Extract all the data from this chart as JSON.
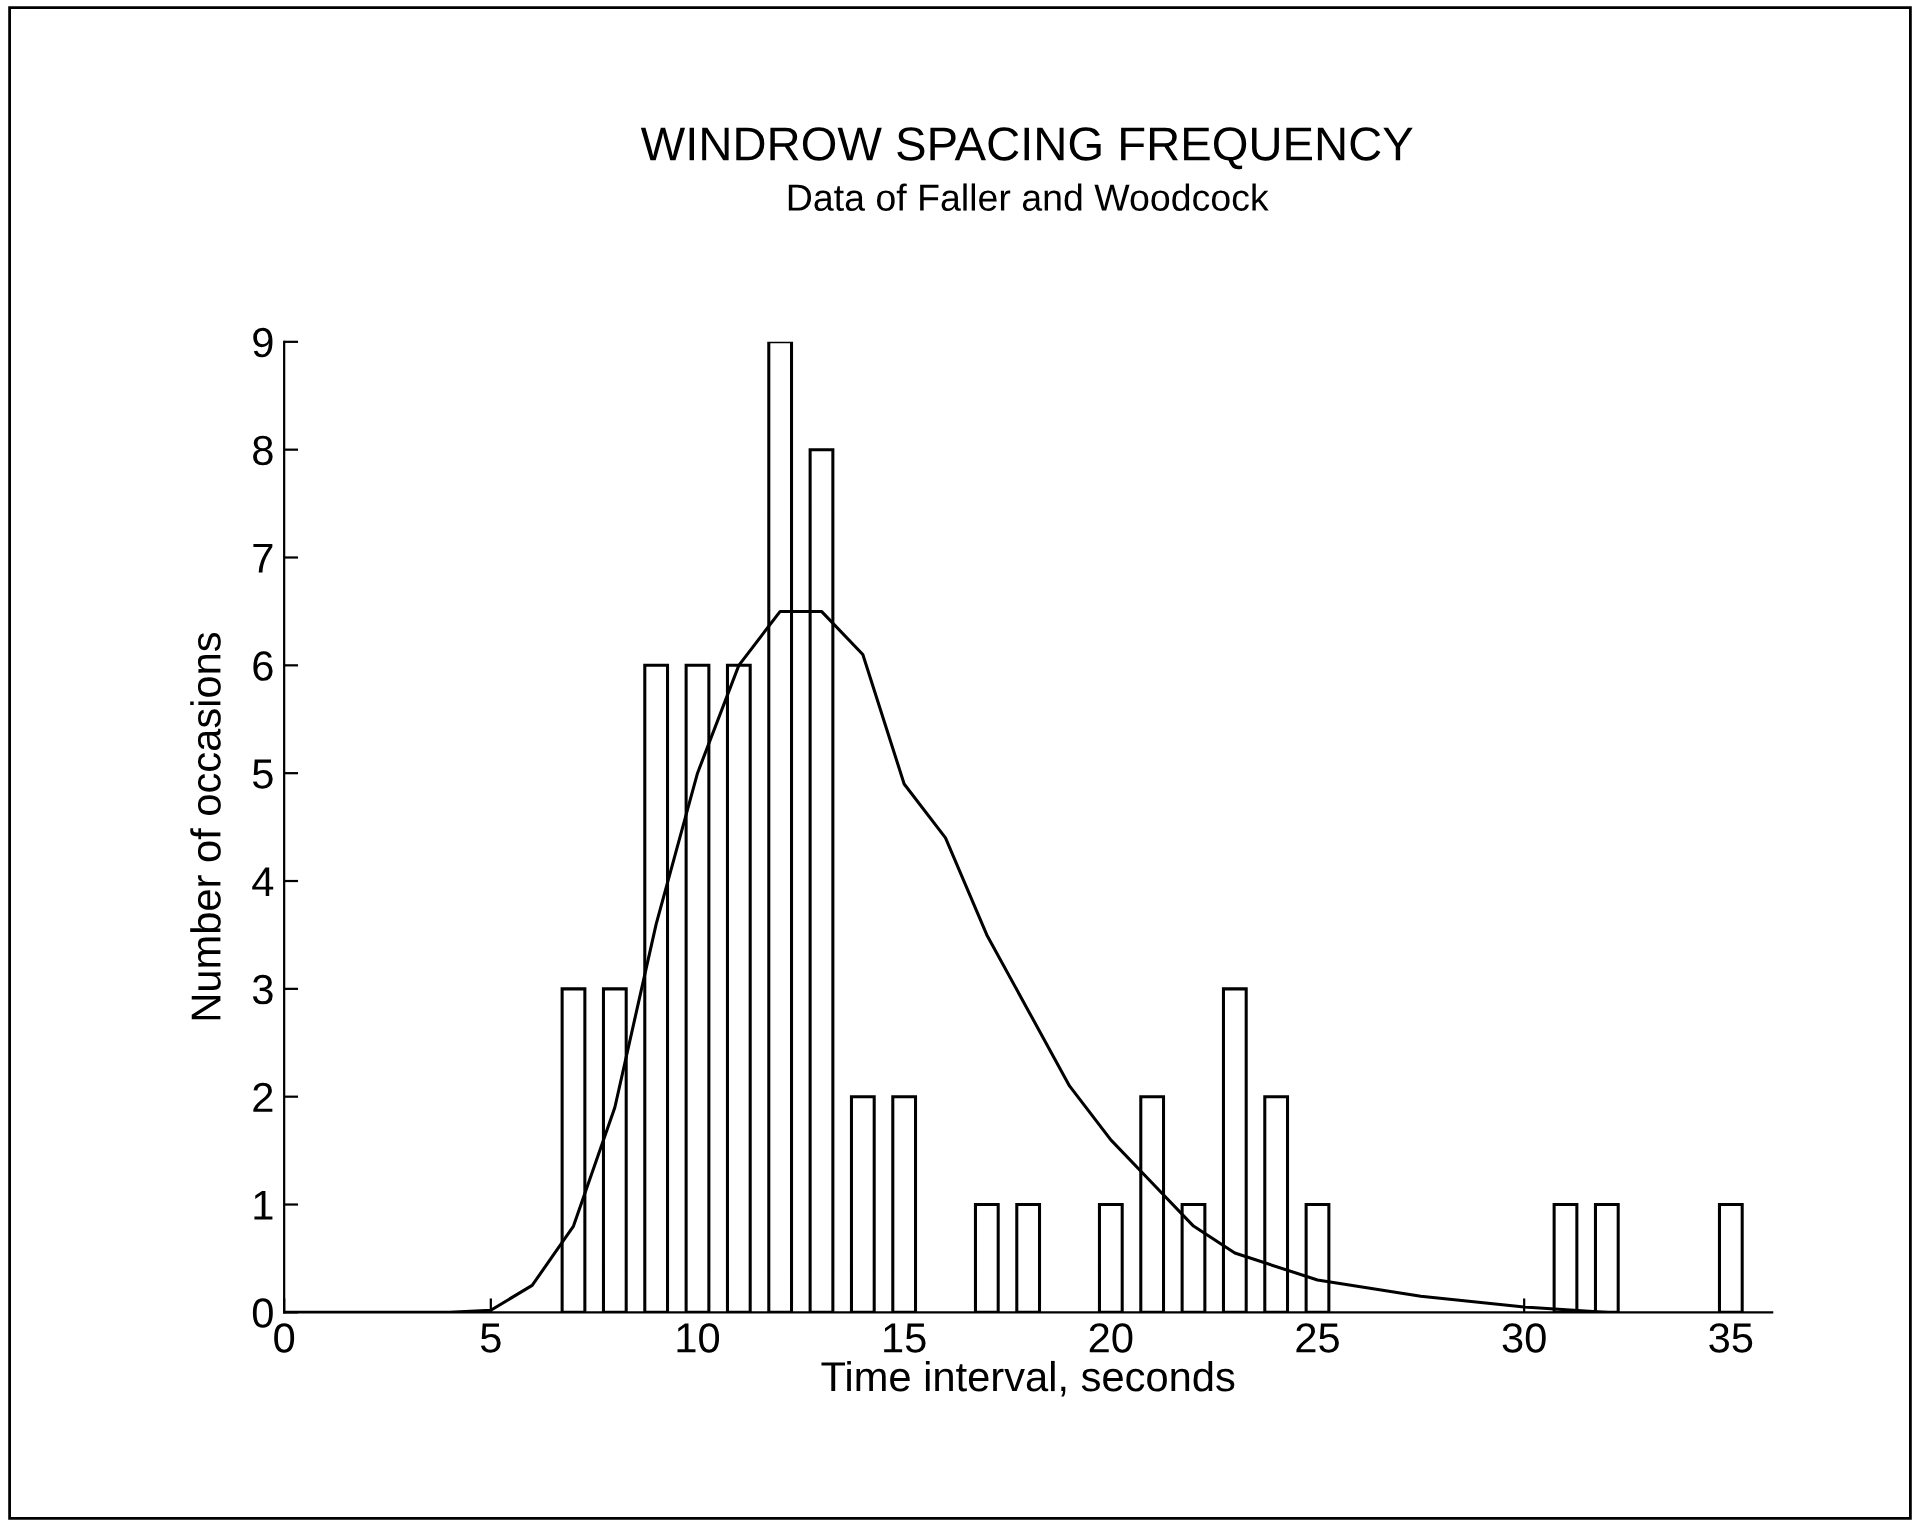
{
  "chart_data": {
    "type": "bar",
    "title": "WINDROW SPACING FREQUENCY",
    "subtitle": "Data of Faller and Woodcock",
    "xlabel": "Time interval, seconds",
    "ylabel": "Number of occasions",
    "series": [
      {
        "color": "#000000",
        "x": [
          7,
          8,
          9,
          10,
          11,
          12,
          13,
          14,
          15,
          17,
          18,
          20,
          21,
          22,
          23,
          24,
          25,
          31,
          32,
          35
        ],
        "values": [
          3,
          3,
          6,
          6,
          6,
          9,
          8,
          2,
          2,
          1,
          1,
          1,
          2,
          1,
          3,
          2,
          1,
          1,
          1,
          1
        ]
      },
      {
        "type": "line",
        "color": "#000000",
        "x": [
          0,
          4,
          5,
          6,
          7,
          8,
          9,
          10,
          11,
          12,
          13,
          14,
          15,
          16,
          17,
          18,
          19,
          20,
          21,
          22,
          23,
          25,
          27.5,
          30,
          32
        ],
        "values": [
          0,
          0,
          0.02,
          0.25,
          0.8,
          1.9,
          3.6,
          5.0,
          6.0,
          6.5,
          6.5,
          6.1,
          4.9,
          4.4,
          3.5,
          2.8,
          2.1,
          1.6,
          1.2,
          0.8,
          0.55,
          0.3,
          0.15,
          0.05,
          0
        ]
      }
    ],
    "xlim": [
      0,
      36
    ],
    "xticks": [
      0,
      5,
      10,
      15,
      20,
      25,
      30,
      35
    ],
    "ylim": [
      0,
      9
    ],
    "yticks": [
      0,
      1,
      2,
      3,
      4,
      5,
      6,
      7,
      8,
      9
    ],
    "grid": false,
    "legend": false
  }
}
